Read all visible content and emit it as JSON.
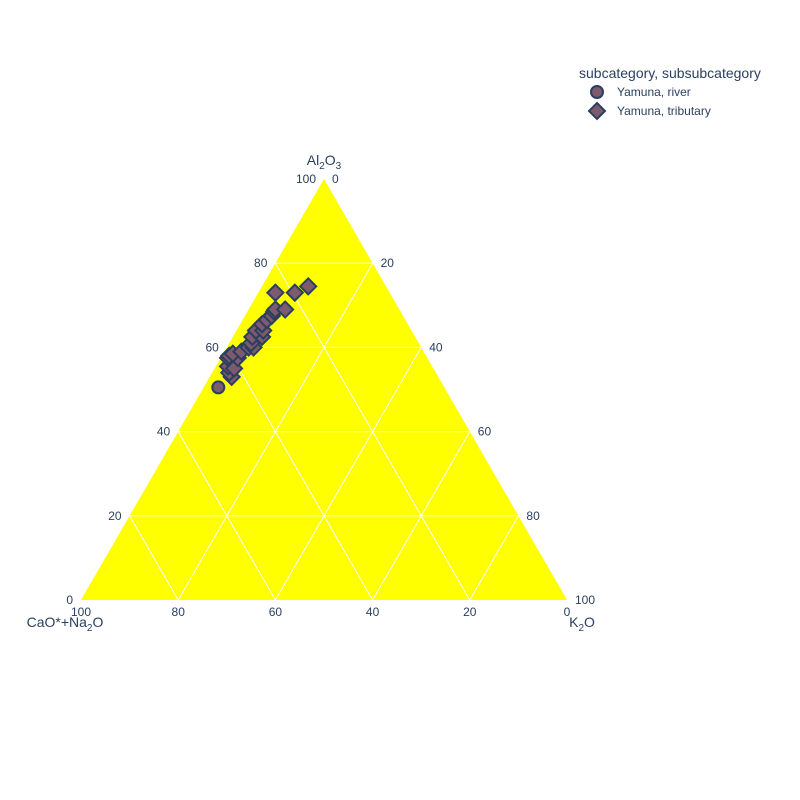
{
  "chart_data": {
    "type": "scatter",
    "subtype": "ternary",
    "background_color": "#ffff00",
    "grid_color": "#ffffff",
    "grid": true,
    "tick_values": [
      0,
      20,
      40,
      60,
      80,
      100
    ],
    "axes": {
      "a": {
        "title": "Al",
        "title_sub1": "2",
        "title_mid": "O",
        "title_sub2": "3",
        "title_tail": "",
        "range": [
          0,
          100
        ]
      },
      "b": {
        "title": "CaO*+Na",
        "title_sub1": "2",
        "title_mid": "O",
        "title_sub2": "",
        "title_tail": "",
        "range": [
          0,
          100
        ]
      },
      "c": {
        "title": "K",
        "title_sub1": "2",
        "title_mid": "O",
        "title_sub2": "",
        "title_tail": "",
        "range": [
          0,
          100
        ]
      }
    },
    "legend": {
      "title": "subcategory, subsubcategory",
      "position": "top-right"
    },
    "series": [
      {
        "name": "Yamuna, river",
        "symbol": "circle",
        "color": "#7e5a6e",
        "outline": "#2a3f5f",
        "points": [
          {
            "a": 50.5,
            "b": 46.5,
            "c": 3.0
          }
        ]
      },
      {
        "name": "Yamuna, tributary",
        "symbol": "diamond",
        "color": "#7e5a6e",
        "outline": "#2a3f5f",
        "points": [
          {
            "a": 53.0,
            "b": 42.5,
            "c": 4.5
          },
          {
            "a": 54.0,
            "b": 42.5,
            "c": 3.5
          },
          {
            "a": 55.5,
            "b": 42.0,
            "c": 2.5
          },
          {
            "a": 55.0,
            "b": 41.0,
            "c": 4.0
          },
          {
            "a": 57.5,
            "b": 39.0,
            "c": 3.5
          },
          {
            "a": 57.5,
            "b": 41.0,
            "c": 1.5
          },
          {
            "a": 58.0,
            "b": 40.5,
            "c": 1.5
          },
          {
            "a": 58.5,
            "b": 39.5,
            "c": 2.0
          },
          {
            "a": 59.0,
            "b": 37.5,
            "c": 3.5
          },
          {
            "a": 60.0,
            "b": 35.5,
            "c": 4.5
          },
          {
            "a": 60.0,
            "b": 34.5,
            "c": 5.5
          },
          {
            "a": 61.0,
            "b": 34.5,
            "c": 4.5
          },
          {
            "a": 62.5,
            "b": 33.5,
            "c": 4.0
          },
          {
            "a": 62.5,
            "b": 31.5,
            "c": 6.0
          },
          {
            "a": 64.0,
            "b": 32.0,
            "c": 4.0
          },
          {
            "a": 64.0,
            "b": 30.5,
            "c": 5.5
          },
          {
            "a": 65.5,
            "b": 30.0,
            "c": 4.5
          },
          {
            "a": 66.5,
            "b": 28.5,
            "c": 5.0
          },
          {
            "a": 67.5,
            "b": 27.0,
            "c": 5.5
          },
          {
            "a": 68.5,
            "b": 26.0,
            "c": 5.5
          },
          {
            "a": 69.0,
            "b": 25.5,
            "c": 5.5
          },
          {
            "a": 69.0,
            "b": 23.5,
            "c": 7.5
          },
          {
            "a": 73.0,
            "b": 19.5,
            "c": 7.5
          },
          {
            "a": 73.0,
            "b": 23.5,
            "c": 3.5
          },
          {
            "a": 74.5,
            "b": 16.0,
            "c": 9.5
          }
        ]
      }
    ]
  }
}
